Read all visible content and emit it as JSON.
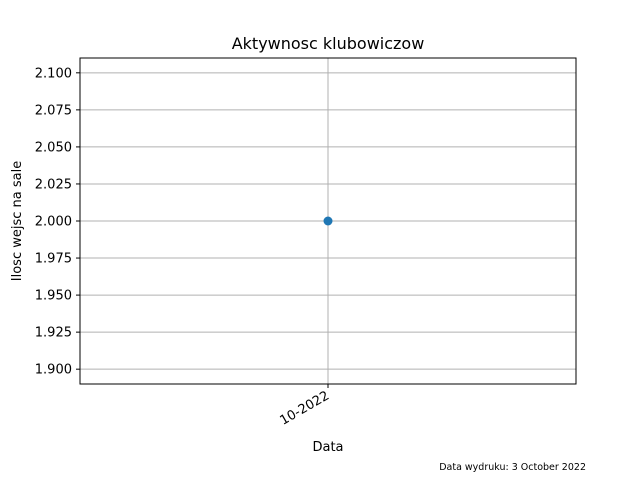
{
  "chart_data": {
    "type": "scatter",
    "title": "Aktywnosc klubowiczow",
    "xlabel": "Data",
    "ylabel": "Ilosc wejsc na sale",
    "x": [
      "10-2022"
    ],
    "series": [
      {
        "values": [
          2.0
        ],
        "color": "#1f77b4"
      }
    ],
    "ylim": [
      1.89,
      2.11
    ],
    "yticks": [
      1.9,
      1.925,
      1.95,
      1.975,
      2.0,
      2.025,
      2.05,
      2.075,
      2.1
    ],
    "ytick_labels": [
      "1.900",
      "1.925",
      "1.950",
      "1.975",
      "2.000",
      "2.025",
      "2.050",
      "2.075",
      "2.100"
    ],
    "xtick_labels": [
      "10-2022"
    ],
    "grid": true,
    "gridline_color": "#b0b0b0"
  },
  "footer": {
    "print_date": "Data wydruku: 3 October 2022"
  }
}
